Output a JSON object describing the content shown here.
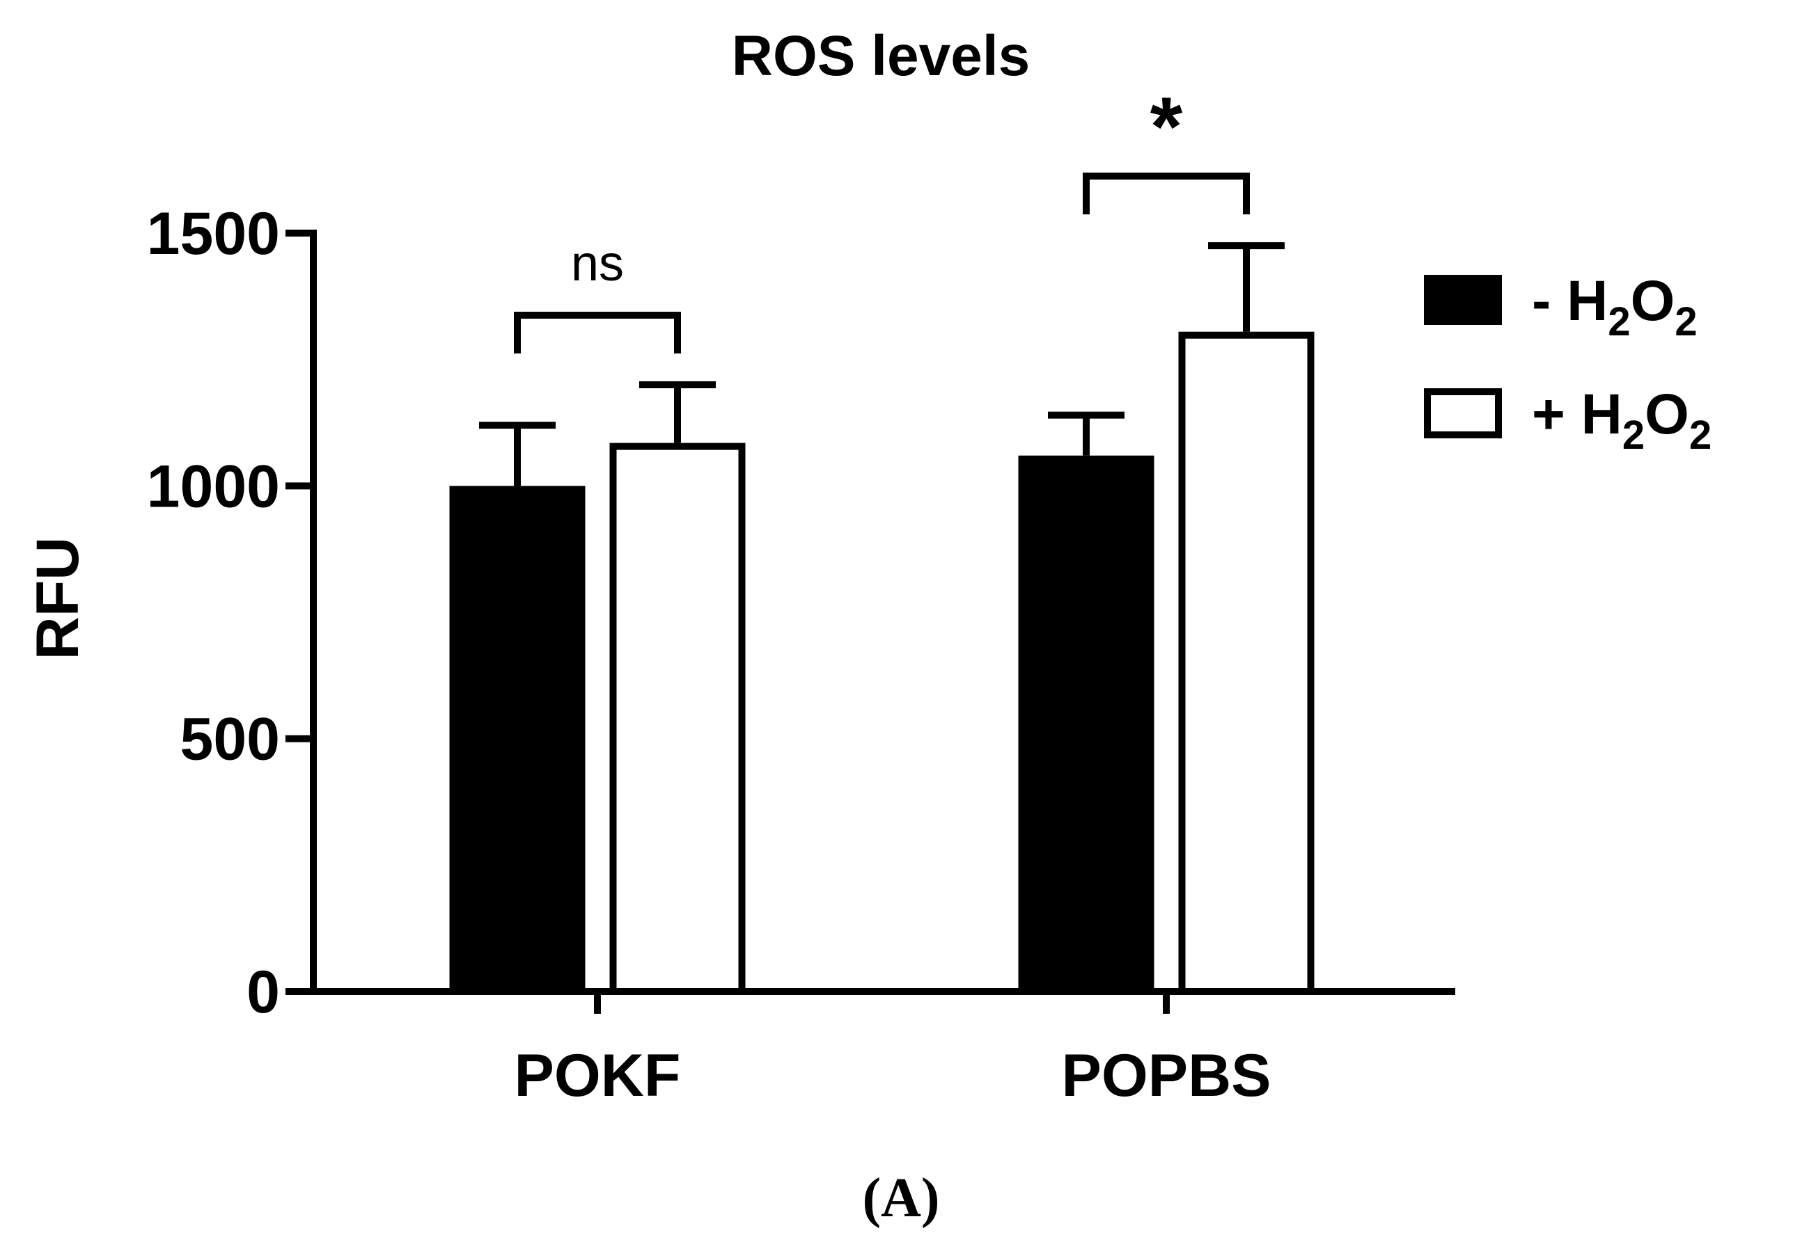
{
  "chart_data": {
    "type": "bar",
    "title": "ROS levels",
    "xlabel": "",
    "ylabel": "RFU",
    "ylim": [
      0,
      1500
    ],
    "yticks": [
      0,
      500,
      1000,
      1500
    ],
    "categories": [
      "POKF",
      "POPBS"
    ],
    "series": [
      {
        "name": "- H2O2",
        "legend_prefix": "- H",
        "legend_sub1": "2",
        "legend_mid": "O",
        "legend_sub2": "2",
        "fill": "#000000",
        "values": [
          1000,
          1060
        ],
        "errors": [
          120,
          80
        ]
      },
      {
        "name": "+ H2O2",
        "legend_prefix": "+ H",
        "legend_sub1": "2",
        "legend_mid": "O",
        "legend_sub2": "2",
        "fill": "#ffffff",
        "values": [
          1085,
          1305
        ],
        "errors": [
          115,
          170
        ]
      }
    ],
    "annotations": [
      {
        "category_index": 0,
        "label": "ns",
        "style": "ns"
      },
      {
        "category_index": 1,
        "label": "*",
        "style": "star"
      }
    ],
    "legend_position": "right"
  },
  "panel_label": "(A)"
}
